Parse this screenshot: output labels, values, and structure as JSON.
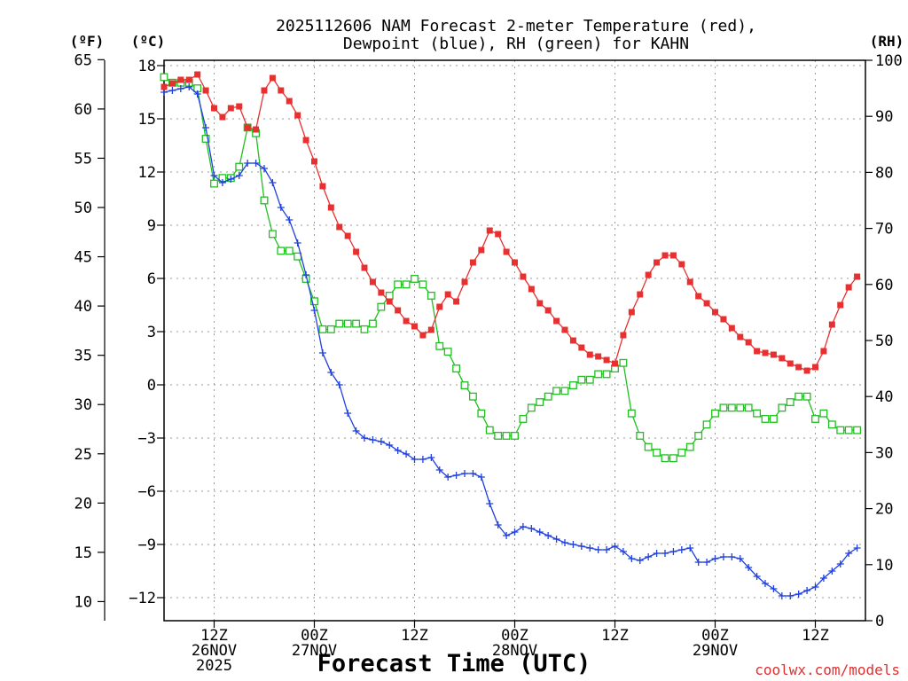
{
  "chart_data": {
    "type": "line",
    "title": "2025112606 NAM Forecast 2-meter Temperature (red),",
    "subtitle": "Dewpoint (blue), RH (green) for KAHN",
    "xlabel": "Forecast Time (UTC)",
    "credit": "coolwx.com/models",
    "units": {
      "fahrenheit": "(ºF)",
      "celsius": "(ºC)",
      "rh": "(RH)"
    },
    "x_unit": "hours since 2025-11-26 06Z",
    "xlim": [
      0,
      84
    ],
    "ylim_celsius": [
      -13.3,
      18.3
    ],
    "ylim_fahrenheit": [
      8.06,
      64.94
    ],
    "ylim_rh": [
      0,
      100
    ],
    "celsius_ticks": [
      "18",
      "15",
      "12",
      "9",
      "6",
      "3",
      "0",
      "−3",
      "−6",
      "−9",
      "−12"
    ],
    "fahrenheit_ticks": [
      "65",
      "60",
      "55",
      "50",
      "45",
      "40",
      "35",
      "30",
      "25",
      "20",
      "15",
      "10"
    ],
    "rh_ticks": [
      "100",
      "90",
      "80",
      "70",
      "60",
      "50",
      "40",
      "30",
      "20",
      "10",
      "0"
    ],
    "x_ticks": [
      {
        "x": 6,
        "lines": [
          "12Z",
          "26NOV",
          "2025"
        ]
      },
      {
        "x": 18,
        "lines": [
          "00Z",
          "27NOV"
        ]
      },
      {
        "x": 30,
        "lines": [
          "12Z"
        ]
      },
      {
        "x": 42,
        "lines": [
          "00Z",
          "28NOV"
        ]
      },
      {
        "x": 54,
        "lines": [
          "12Z"
        ]
      },
      {
        "x": 66,
        "lines": [
          "00Z",
          "29NOV"
        ]
      },
      {
        "x": 78,
        "lines": [
          "12Z"
        ]
      }
    ],
    "grid": true,
    "series": [
      {
        "name": "Temperature",
        "axis": "celsius",
        "color": "#e83030",
        "marker": "filled-square",
        "points": [
          [
            0,
            16.8
          ],
          [
            1,
            17.0
          ],
          [
            2,
            17.2
          ],
          [
            3,
            17.2
          ],
          [
            4,
            17.5
          ],
          [
            5,
            16.6
          ],
          [
            6,
            15.6
          ],
          [
            7,
            15.1
          ],
          [
            8,
            15.6
          ],
          [
            9,
            15.7
          ],
          [
            10,
            14.5
          ],
          [
            11,
            14.4
          ],
          [
            12,
            16.6
          ],
          [
            13,
            17.3
          ],
          [
            14,
            16.6
          ],
          [
            15,
            16.0
          ],
          [
            16,
            15.2
          ],
          [
            17,
            13.8
          ],
          [
            18,
            12.6
          ],
          [
            19,
            11.2
          ],
          [
            20,
            10.0
          ],
          [
            21,
            8.9
          ],
          [
            22,
            8.4
          ],
          [
            23,
            7.5
          ],
          [
            24,
            6.6
          ],
          [
            25,
            5.8
          ],
          [
            26,
            5.2
          ],
          [
            27,
            4.7
          ],
          [
            28,
            4.2
          ],
          [
            29,
            3.6
          ],
          [
            30,
            3.3
          ],
          [
            31,
            2.8
          ],
          [
            32,
            3.1
          ],
          [
            33,
            4.4
          ],
          [
            34,
            5.1
          ],
          [
            35,
            4.7
          ],
          [
            36,
            5.8
          ],
          [
            37,
            6.9
          ],
          [
            38,
            7.6
          ],
          [
            39,
            8.7
          ],
          [
            40,
            8.5
          ],
          [
            41,
            7.5
          ],
          [
            42,
            6.9
          ],
          [
            43,
            6.1
          ],
          [
            44,
            5.4
          ],
          [
            45,
            4.6
          ],
          [
            46,
            4.2
          ],
          [
            47,
            3.6
          ],
          [
            48,
            3.1
          ],
          [
            49,
            2.5
          ],
          [
            50,
            2.1
          ],
          [
            51,
            1.7
          ],
          [
            52,
            1.6
          ],
          [
            53,
            1.4
          ],
          [
            54,
            1.2
          ],
          [
            55,
            2.8
          ],
          [
            56,
            4.1
          ],
          [
            57,
            5.1
          ],
          [
            58,
            6.2
          ],
          [
            59,
            6.9
          ],
          [
            60,
            7.3
          ],
          [
            61,
            7.3
          ],
          [
            62,
            6.8
          ],
          [
            63,
            5.8
          ],
          [
            64,
            5.0
          ],
          [
            65,
            4.6
          ],
          [
            66,
            4.1
          ],
          [
            67,
            3.7
          ],
          [
            68,
            3.2
          ],
          [
            69,
            2.7
          ],
          [
            70,
            2.4
          ],
          [
            71,
            1.9
          ],
          [
            72,
            1.8
          ],
          [
            73,
            1.7
          ],
          [
            74,
            1.5
          ],
          [
            75,
            1.2
          ],
          [
            76,
            1.0
          ],
          [
            77,
            0.8
          ],
          [
            78,
            1.0
          ],
          [
            79,
            1.9
          ],
          [
            80,
            3.4
          ],
          [
            81,
            4.5
          ],
          [
            82,
            5.5
          ],
          [
            83,
            6.1
          ]
        ]
      },
      {
        "name": "Dewpoint",
        "axis": "celsius",
        "color": "#2040e0",
        "marker": "plus",
        "points": [
          [
            0,
            16.5
          ],
          [
            1,
            16.6
          ],
          [
            2,
            16.7
          ],
          [
            3,
            16.8
          ],
          [
            4,
            16.4
          ],
          [
            5,
            14.5
          ],
          [
            6,
            11.8
          ],
          [
            7,
            11.4
          ],
          [
            8,
            11.6
          ],
          [
            9,
            11.8
          ],
          [
            10,
            12.5
          ],
          [
            11,
            12.5
          ],
          [
            12,
            12.2
          ],
          [
            13,
            11.4
          ],
          [
            14,
            10.0
          ],
          [
            15,
            9.3
          ],
          [
            16,
            8.0
          ],
          [
            17,
            6.2
          ],
          [
            18,
            4.2
          ],
          [
            19,
            1.8
          ],
          [
            20,
            0.7
          ],
          [
            21,
            0
          ],
          [
            22,
            -1.6
          ],
          [
            23,
            -2.6
          ],
          [
            24,
            -3.0
          ],
          [
            25,
            -3.1
          ],
          [
            26,
            -3.2
          ],
          [
            27,
            -3.4
          ],
          [
            28,
            -3.7
          ],
          [
            29,
            -3.9
          ],
          [
            30,
            -4.2
          ],
          [
            31,
            -4.2
          ],
          [
            32,
            -4.1
          ],
          [
            33,
            -4.8
          ],
          [
            34,
            -5.2
          ],
          [
            35,
            -5.1
          ],
          [
            36,
            -5.0
          ],
          [
            37,
            -5.0
          ],
          [
            38,
            -5.2
          ],
          [
            39,
            -6.7
          ],
          [
            40,
            -7.9
          ],
          [
            41,
            -8.5
          ],
          [
            42,
            -8.3
          ],
          [
            43,
            -8.0
          ],
          [
            44,
            -8.1
          ],
          [
            45,
            -8.3
          ],
          [
            46,
            -8.5
          ],
          [
            47,
            -8.7
          ],
          [
            48,
            -8.9
          ],
          [
            49,
            -9.0
          ],
          [
            50,
            -9.1
          ],
          [
            51,
            -9.2
          ],
          [
            52,
            -9.3
          ],
          [
            53,
            -9.3
          ],
          [
            54,
            -9.1
          ],
          [
            55,
            -9.4
          ],
          [
            56,
            -9.8
          ],
          [
            57,
            -9.9
          ],
          [
            58,
            -9.7
          ],
          [
            59,
            -9.5
          ],
          [
            60,
            -9.5
          ],
          [
            61,
            -9.4
          ],
          [
            62,
            -9.3
          ],
          [
            63,
            -9.2
          ],
          [
            64,
            -10.0
          ],
          [
            65,
            -10.0
          ],
          [
            66,
            -9.8
          ],
          [
            67,
            -9.7
          ],
          [
            68,
            -9.7
          ],
          [
            69,
            -9.8
          ],
          [
            70,
            -10.3
          ],
          [
            71,
            -10.8
          ],
          [
            72,
            -11.2
          ],
          [
            73,
            -11.5
          ],
          [
            74,
            -11.9
          ],
          [
            75,
            -11.9
          ],
          [
            76,
            -11.8
          ],
          [
            77,
            -11.6
          ],
          [
            78,
            -11.4
          ],
          [
            79,
            -10.9
          ],
          [
            80,
            -10.5
          ],
          [
            81,
            -10.1
          ],
          [
            82,
            -9.5
          ],
          [
            83,
            -9.2
          ]
        ]
      },
      {
        "name": "RH",
        "axis": "rh",
        "color": "#20c020",
        "marker": "open-square",
        "points": [
          [
            0,
            97
          ],
          [
            1,
            96
          ],
          [
            2,
            96
          ],
          [
            3,
            96
          ],
          [
            4,
            95
          ],
          [
            5,
            86
          ],
          [
            6,
            78
          ],
          [
            7,
            79
          ],
          [
            8,
            79
          ],
          [
            9,
            81
          ],
          [
            10,
            88
          ],
          [
            11,
            87
          ],
          [
            12,
            75
          ],
          [
            13,
            69
          ],
          [
            14,
            66
          ],
          [
            15,
            66
          ],
          [
            16,
            65
          ],
          [
            17,
            61
          ],
          [
            18,
            57
          ],
          [
            19,
            52
          ],
          [
            20,
            52
          ],
          [
            21,
            53
          ],
          [
            22,
            53
          ],
          [
            23,
            53
          ],
          [
            24,
            52
          ],
          [
            25,
            53
          ],
          [
            26,
            56
          ],
          [
            27,
            58
          ],
          [
            28,
            60
          ],
          [
            29,
            60
          ],
          [
            30,
            61
          ],
          [
            31,
            60
          ],
          [
            32,
            58
          ],
          [
            33,
            49
          ],
          [
            34,
            48
          ],
          [
            35,
            45
          ],
          [
            36,
            42
          ],
          [
            37,
            40
          ],
          [
            38,
            37
          ],
          [
            39,
            34
          ],
          [
            40,
            33
          ],
          [
            41,
            33
          ],
          [
            42,
            33
          ],
          [
            43,
            36
          ],
          [
            44,
            38
          ],
          [
            45,
            39
          ],
          [
            46,
            40
          ],
          [
            47,
            41
          ],
          [
            48,
            41
          ],
          [
            49,
            42
          ],
          [
            50,
            43
          ],
          [
            51,
            43
          ],
          [
            52,
            44
          ],
          [
            53,
            44
          ],
          [
            54,
            45
          ],
          [
            55,
            46
          ],
          [
            56,
            37
          ],
          [
            57,
            33
          ],
          [
            58,
            31
          ],
          [
            59,
            30
          ],
          [
            60,
            29
          ],
          [
            61,
            29
          ],
          [
            62,
            30
          ],
          [
            63,
            31
          ],
          [
            64,
            33
          ],
          [
            65,
            35
          ],
          [
            66,
            37
          ],
          [
            67,
            38
          ],
          [
            68,
            38
          ],
          [
            69,
            38
          ],
          [
            70,
            38
          ],
          [
            71,
            37
          ],
          [
            72,
            36
          ],
          [
            73,
            36
          ],
          [
            74,
            38
          ],
          [
            75,
            39
          ],
          [
            76,
            40
          ],
          [
            77,
            40
          ],
          [
            78,
            36
          ],
          [
            79,
            37
          ],
          [
            80,
            35
          ],
          [
            81,
            34
          ],
          [
            82,
            34
          ],
          [
            83,
            34
          ]
        ]
      }
    ]
  }
}
